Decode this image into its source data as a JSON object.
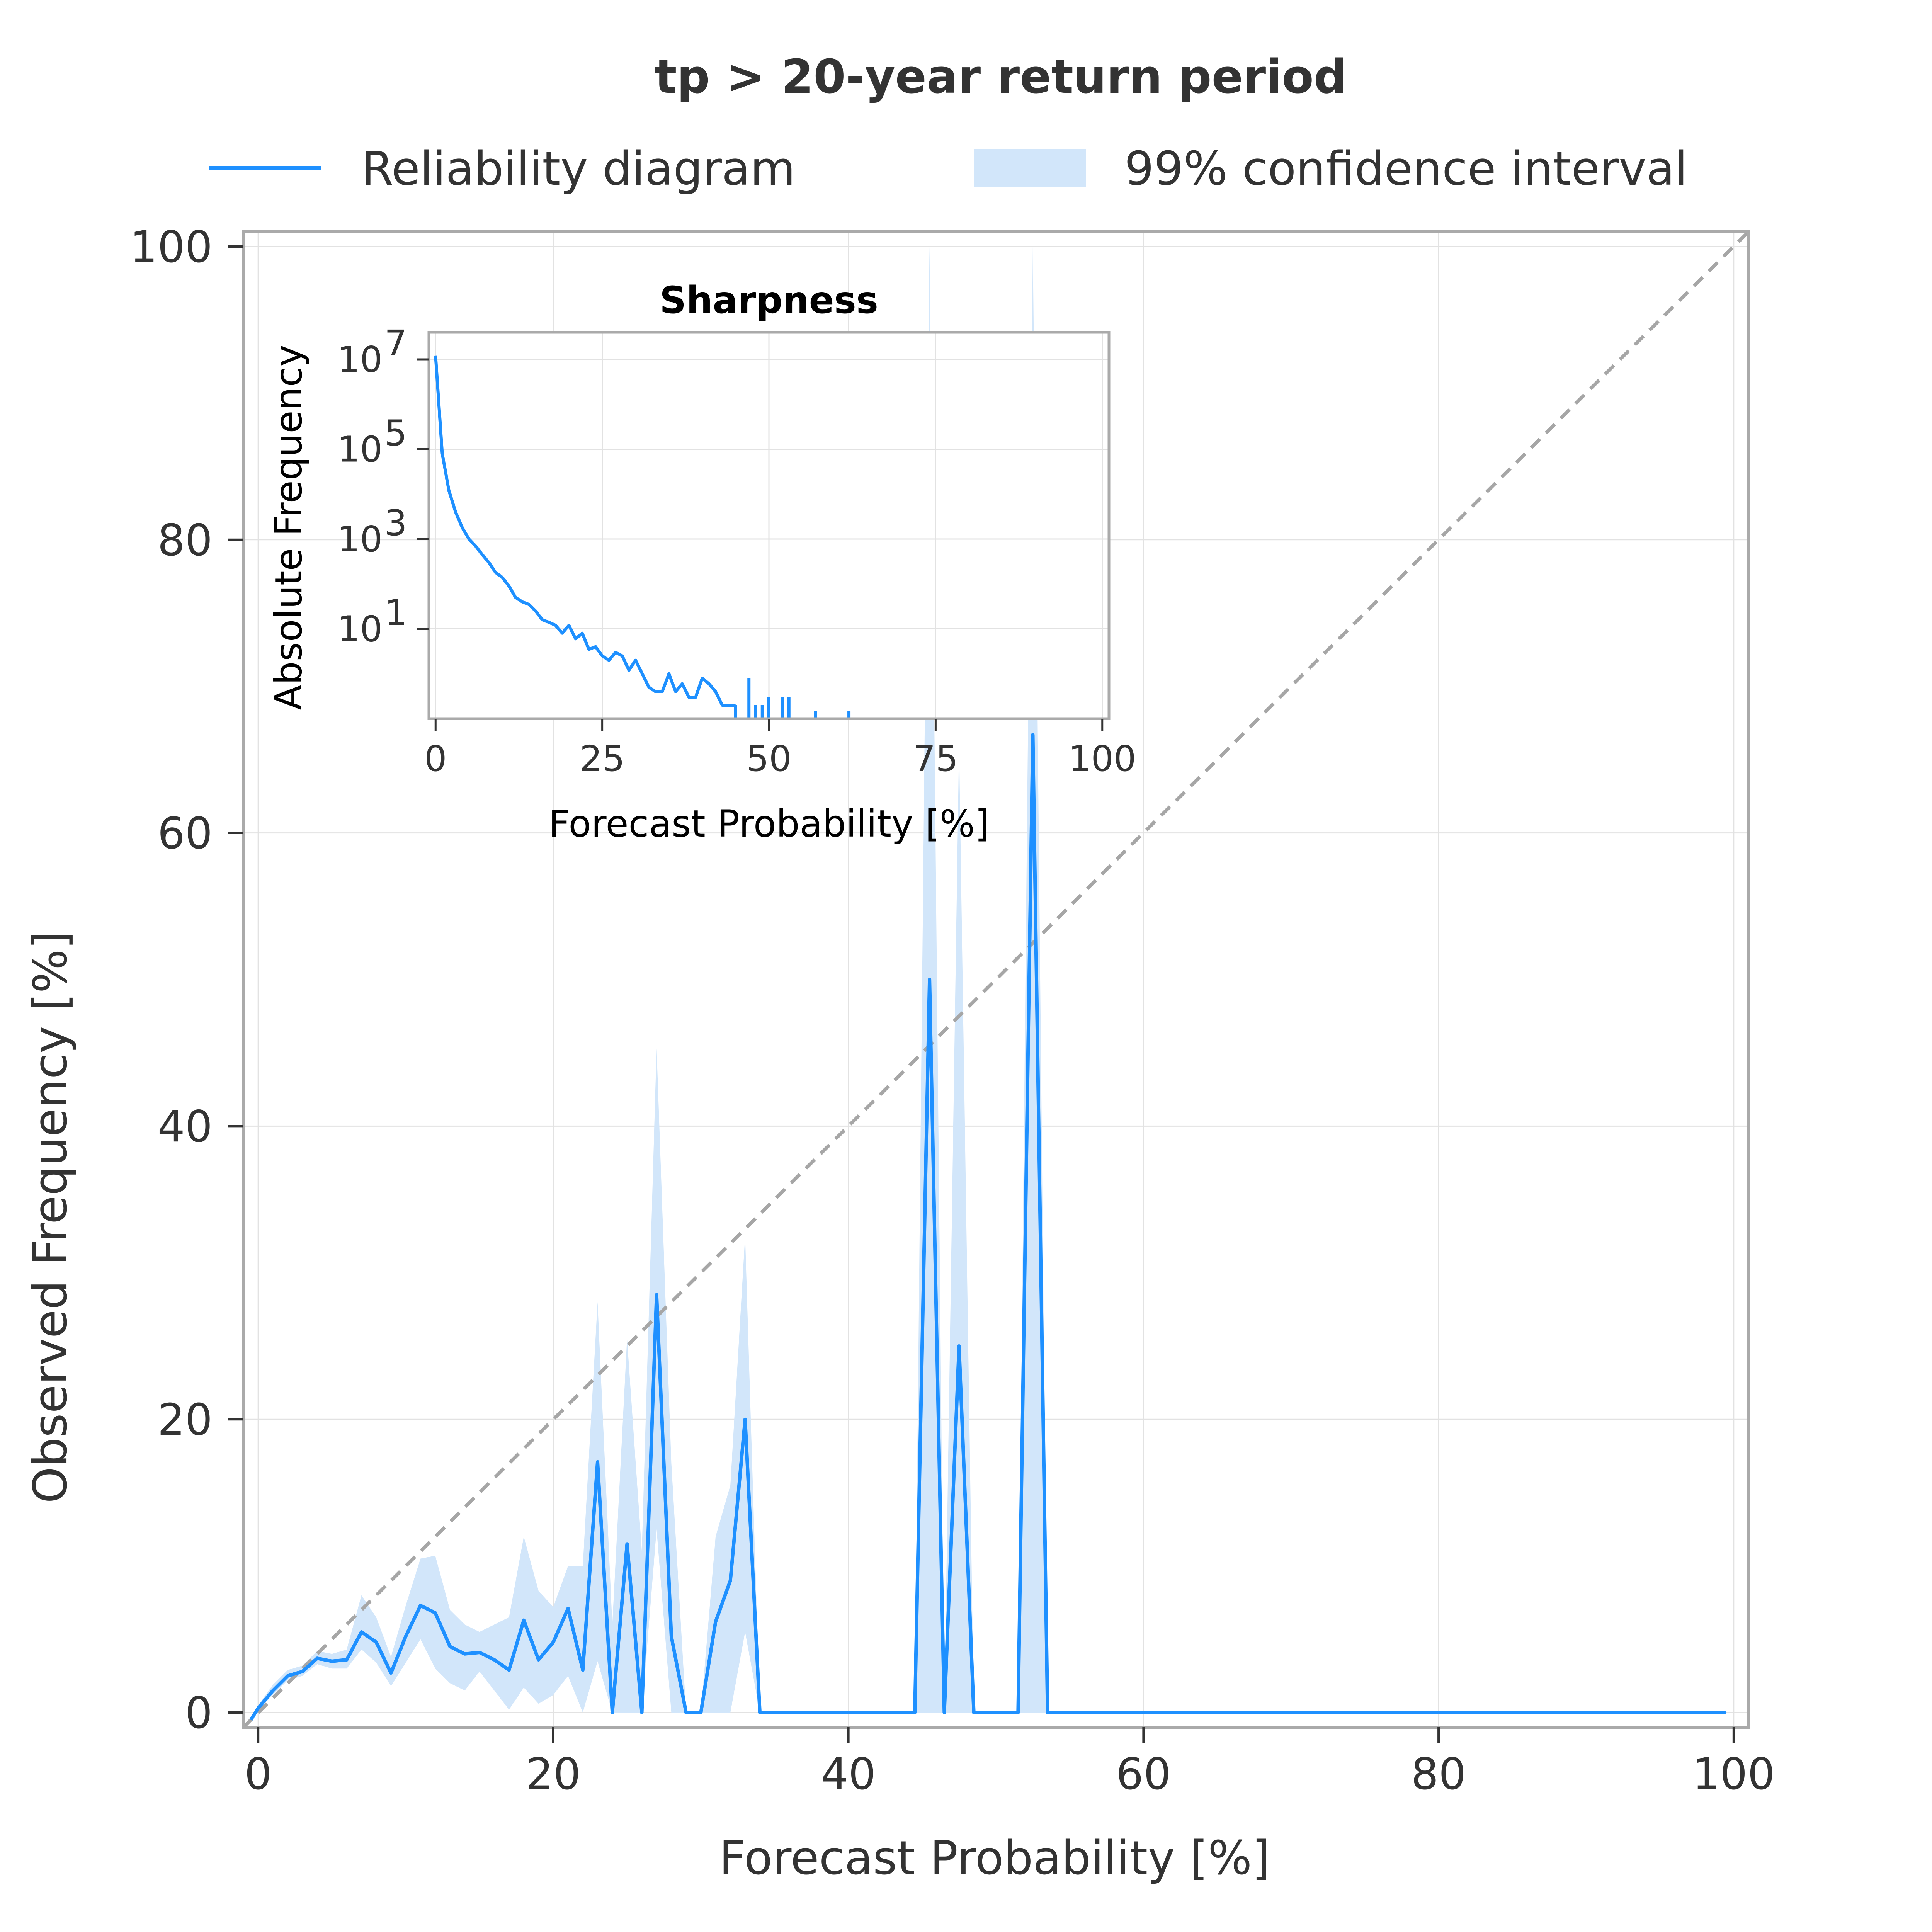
{
  "chart_data": [
    {
      "type": "line",
      "title": "tp > 20-year return period",
      "xlabel": "Forecast Probability [%]",
      "ylabel": "Observed Frequency [%]",
      "xlim": [
        -1,
        101
      ],
      "ylim": [
        -1,
        101
      ],
      "xticks": [
        "0",
        "20",
        "40",
        "60",
        "80",
        "100"
      ],
      "yticks": [
        "0",
        "20",
        "40",
        "60",
        "80",
        "100"
      ],
      "grid": true,
      "legend_position": "top",
      "legend": [
        {
          "label": "Reliability diagram",
          "kind": "line"
        },
        {
          "label": "99% confidence interval",
          "kind": "band"
        }
      ],
      "reference_line": {
        "x": [
          -1,
          101
        ],
        "y": [
          -1,
          101
        ],
        "style": "dashed",
        "color": "#a6a6a6"
      },
      "series": [
        {
          "name": "Reliability diagram",
          "color": "#1e90ff",
          "x": [
            -0.5,
            0,
            1,
            2,
            3,
            4,
            5,
            6,
            7,
            8,
            9,
            10,
            11,
            12,
            13,
            14,
            15,
            16,
            17,
            18,
            19,
            20,
            21,
            22,
            23,
            24,
            25,
            26,
            27,
            28,
            29,
            30,
            31,
            32,
            33,
            34,
            35,
            44.5,
            45.5,
            46.5,
            47.5,
            48.5,
            51.5,
            52.5,
            53.5,
            99.5
          ],
          "y": [
            -0.5,
            0.3,
            1.5,
            2.5,
            2.8,
            3.7,
            3.5,
            3.6,
            5.5,
            4.8,
            2.7,
            5.2,
            7.3,
            6.8,
            4.5,
            4.0,
            4.1,
            3.6,
            2.9,
            6.3,
            3.6,
            4.8,
            7.1,
            2.9,
            17.1,
            0,
            11.5,
            0,
            28.5,
            5.2,
            0,
            0,
            6.2,
            9.0,
            20.0,
            0,
            0,
            0,
            50.0,
            0,
            25.0,
            0,
            0,
            66.7,
            0,
            0
          ]
        },
        {
          "name": "99% confidence interval",
          "color": "#d2e6fa",
          "x": [
            0,
            1,
            2,
            3,
            4,
            5,
            6,
            7,
            8,
            9,
            10,
            11,
            12,
            13,
            14,
            15,
            16,
            17,
            18,
            19,
            20,
            21,
            22,
            23,
            24,
            25,
            26,
            27,
            28,
            29,
            30,
            31,
            32,
            33,
            34,
            35,
            44.5,
            45.5,
            46.5,
            47.5,
            48.5,
            51.5,
            52.5,
            53.5
          ],
          "lower": [
            0.2,
            1.2,
            2.2,
            2.5,
            3.3,
            3.0,
            3.0,
            4.3,
            3.4,
            1.8,
            3.4,
            5.0,
            3.0,
            2.0,
            1.5,
            2.8,
            1.5,
            0.2,
            1.7,
            0.6,
            1.2,
            2.5,
            0,
            3.5,
            0,
            0,
            0,
            12.5,
            0,
            0,
            0,
            0,
            0,
            5.5,
            0,
            0,
            0,
            0,
            0,
            0,
            0,
            0,
            0,
            0
          ],
          "upper": [
            0.5,
            1.9,
            2.9,
            3.2,
            4.2,
            4.0,
            4.3,
            8.0,
            6.5,
            3.8,
            7.3,
            10.5,
            10.7,
            7.0,
            6.0,
            5.5,
            6.0,
            6.5,
            12.0,
            8.3,
            7.2,
            10.0,
            10.0,
            28.0,
            6.0,
            25.5,
            11.0,
            45.3,
            17.0,
            0,
            0,
            12.0,
            15.5,
            32.5,
            0,
            0,
            0,
            100.0,
            0,
            66.0,
            0,
            0,
            100.0,
            0
          ]
        }
      ]
    },
    {
      "type": "line",
      "title": "Sharpness",
      "xlabel": "Forecast Probability [%]",
      "ylabel": "Absolute Frequency",
      "yscale": "log",
      "xlim": [
        -1,
        101
      ],
      "ylim": [
        0.1,
        40000000
      ],
      "xticks": [
        "0",
        "25",
        "50",
        "75",
        "100"
      ],
      "yticks": [
        {
          "base": "10",
          "exp": "1"
        },
        {
          "base": "10",
          "exp": "3"
        },
        {
          "base": "10",
          "exp": "5"
        },
        {
          "base": "10",
          "exp": "7"
        }
      ],
      "grid": true,
      "series": [
        {
          "name": "",
          "color": "#1e90ff",
          "x": [
            0,
            1,
            2,
            3,
            4,
            5,
            6,
            7,
            8,
            9,
            10,
            11,
            12,
            13,
            14,
            15,
            16,
            17,
            18,
            19,
            20,
            21,
            22,
            23,
            24,
            25,
            26,
            27,
            28,
            29,
            30,
            31,
            32,
            33,
            34,
            35,
            36,
            37,
            38,
            39,
            40,
            41,
            42,
            43,
            44,
            45
          ],
          "y": [
            12000000,
            80000,
            12000,
            4000,
            1800,
            1000,
            700,
            450,
            300,
            180,
            140,
            90,
            50,
            40,
            35,
            25,
            16,
            14,
            12,
            8,
            12,
            6,
            8,
            3.5,
            4,
            2.5,
            2,
            3,
            2.5,
            1.2,
            2,
            1,
            0.5,
            0.4,
            0.4,
            1,
            0.4,
            0.6,
            0.3,
            0.3,
            0.8,
            0.6,
            0.4,
            0.2,
            0.2,
            0.2
          ]
        },
        {
          "name": "",
          "color": "#1e90ff",
          "spikes": [
            {
              "x": 47,
              "y": 0.8
            },
            {
              "x": 48,
              "y": 0.2
            },
            {
              "x": 49,
              "y": 0.2
            },
            {
              "x": 50,
              "y": 0.3
            },
            {
              "x": 52,
              "y": 0.3
            },
            {
              "x": 53,
              "y": 0.3
            },
            {
              "x": 57,
              "y": 0.15
            },
            {
              "x": 62,
              "y": 0.15
            }
          ]
        }
      ]
    }
  ]
}
